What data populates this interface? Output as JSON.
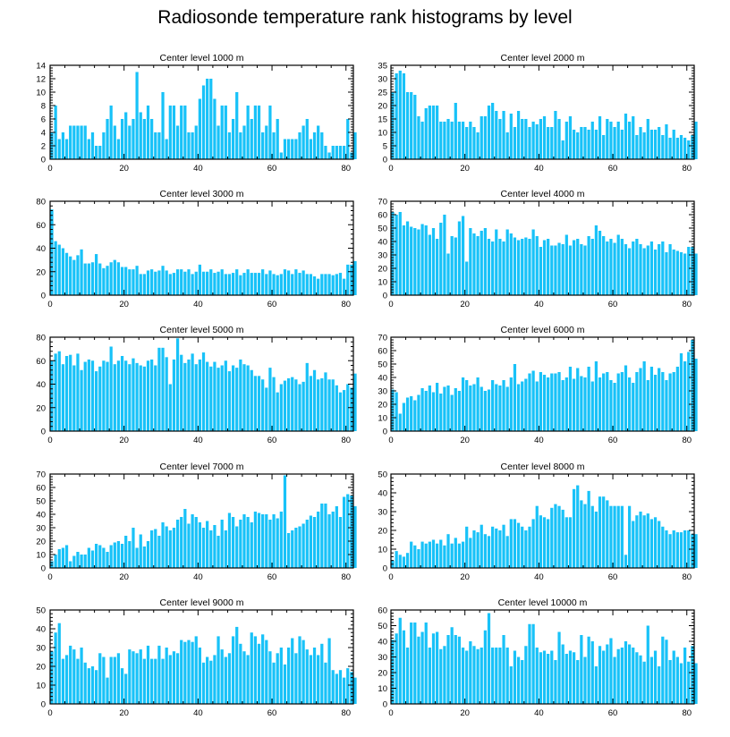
{
  "title": "Radiosonde temperature rank histograms by level",
  "bar_color": "#18C2F8",
  "chart_data": [
    {
      "type": "bar",
      "title": "Center level 1000 m",
      "xlabel": "",
      "ylabel": "",
      "xlim": [
        0,
        82
      ],
      "ylim": [
        0,
        14
      ],
      "xticks": [
        0,
        20,
        40,
        60,
        80
      ],
      "yticks": [
        0,
        2,
        4,
        6,
        8,
        10,
        12,
        14
      ],
      "yaxis_side": "left",
      "x_start": 0,
      "values": [
        4,
        8,
        3,
        4,
        3,
        5,
        5,
        5,
        5,
        5,
        3,
        4,
        2,
        2,
        4,
        6,
        8,
        5,
        3,
        6,
        7,
        5,
        6,
        13,
        7,
        6,
        8,
        6,
        4,
        4,
        10,
        3,
        8,
        8,
        5,
        8,
        8,
        4,
        4,
        5,
        9,
        11,
        12,
        12,
        9,
        5,
        8,
        8,
        4,
        6,
        10,
        4,
        5,
        8,
        6,
        8,
        8,
        4,
        5,
        8,
        4,
        6,
        1,
        3,
        3,
        3,
        3,
        4,
        5,
        6,
        3,
        4,
        5,
        4,
        2,
        1,
        2,
        2,
        2,
        2,
        6,
        1,
        4
      ]
    },
    {
      "type": "bar",
      "title": "Center level 2000 m",
      "xlabel": "",
      "ylabel": "",
      "xlim": [
        0,
        82
      ],
      "ylim": [
        0,
        35
      ],
      "xticks": [
        0,
        20,
        40,
        60,
        80
      ],
      "yticks": [
        0,
        5,
        10,
        15,
        20,
        25,
        30,
        35
      ],
      "yaxis_side": "right",
      "x_start": 0,
      "values": [
        25,
        32,
        33,
        32,
        25,
        25,
        24,
        16,
        14,
        19,
        20,
        20,
        20,
        14,
        14,
        15,
        14,
        21,
        14,
        14,
        12,
        14,
        12,
        10,
        16,
        16,
        20,
        21,
        18,
        15,
        18,
        10,
        17,
        12,
        18,
        15,
        15,
        12,
        14,
        13,
        15,
        16,
        12,
        12,
        18,
        15,
        7,
        14,
        16,
        11,
        10,
        12,
        12,
        11,
        14,
        11,
        16,
        9,
        15,
        14,
        12,
        14,
        11,
        17,
        14,
        16,
        9,
        12,
        10,
        15,
        11,
        11,
        12,
        9,
        13,
        8,
        11,
        8,
        9,
        8,
        7,
        9,
        14
      ]
    },
    {
      "type": "bar",
      "title": "Center level 3000 m",
      "xlabel": "",
      "ylabel": "",
      "xlim": [
        0,
        82
      ],
      "ylim": [
        0,
        80
      ],
      "xticks": [
        0,
        20,
        40,
        60,
        80
      ],
      "yticks": [
        0,
        20,
        40,
        60,
        80
      ],
      "yaxis_side": "left",
      "x_start": 0,
      "values": [
        73,
        46,
        43,
        40,
        36,
        33,
        30,
        34,
        39,
        27,
        27,
        28,
        35,
        27,
        23,
        25,
        28,
        30,
        28,
        24,
        24,
        22,
        22,
        25,
        18,
        18,
        21,
        22,
        20,
        21,
        25,
        21,
        18,
        19,
        22,
        22,
        20,
        22,
        18,
        20,
        26,
        20,
        20,
        22,
        19,
        20,
        22,
        18,
        18,
        19,
        22,
        17,
        19,
        22,
        19,
        19,
        19,
        22,
        18,
        21,
        18,
        17,
        18,
        22,
        21,
        18,
        22,
        19,
        21,
        18,
        18,
        16,
        14,
        18,
        18,
        18,
        17,
        18,
        19,
        14,
        26,
        26,
        29
      ]
    },
    {
      "type": "bar",
      "title": "Center level 4000 m",
      "xlabel": "",
      "ylabel": "",
      "xlim": [
        0,
        82
      ],
      "ylim": [
        0,
        70
      ],
      "xticks": [
        0,
        20,
        40,
        60,
        80
      ],
      "yticks": [
        0,
        10,
        20,
        30,
        40,
        50,
        60,
        70
      ],
      "yaxis_side": "right",
      "x_start": 0,
      "values": [
        62,
        60,
        62,
        52,
        55,
        51,
        50,
        49,
        53,
        52,
        45,
        50,
        42,
        54,
        60,
        31,
        44,
        43,
        55,
        59,
        25,
        50,
        46,
        44,
        48,
        50,
        42,
        40,
        49,
        42,
        40,
        49,
        46,
        43,
        41,
        42,
        43,
        42,
        49,
        44,
        36,
        41,
        42,
        37,
        37,
        39,
        38,
        45,
        37,
        41,
        42,
        38,
        37,
        44,
        42,
        52,
        48,
        44,
        40,
        42,
        39,
        45,
        42,
        38,
        35,
        40,
        42,
        38,
        35,
        37,
        40,
        34,
        38,
        40,
        32,
        38,
        34,
        33,
        32,
        31,
        36,
        36,
        31
      ]
    },
    {
      "type": "bar",
      "title": "Center level 5000 m",
      "xlabel": "",
      "ylabel": "",
      "xlim": [
        0,
        82
      ],
      "ylim": [
        0,
        80
      ],
      "xticks": [
        0,
        20,
        40,
        60,
        80
      ],
      "yticks": [
        0,
        20,
        40,
        60,
        80
      ],
      "yaxis_side": "left",
      "x_start": 0,
      "values": [
        60,
        66,
        68,
        57,
        64,
        65,
        56,
        66,
        52,
        59,
        61,
        60,
        51,
        55,
        60,
        59,
        72,
        57,
        60,
        64,
        60,
        57,
        62,
        58,
        56,
        55,
        60,
        61,
        56,
        71,
        71,
        63,
        40,
        61,
        79,
        65,
        58,
        61,
        66,
        57,
        61,
        67,
        59,
        55,
        59,
        54,
        56,
        60,
        51,
        56,
        54,
        61,
        57,
        56,
        52,
        47,
        47,
        44,
        37,
        54,
        46,
        33,
        40,
        43,
        45,
        46,
        44,
        40,
        42,
        58,
        47,
        52,
        44,
        45,
        50,
        44,
        44,
        39,
        33,
        35,
        40,
        37,
        49
      ]
    },
    {
      "type": "bar",
      "title": "Center level 6000 m",
      "xlabel": "",
      "ylabel": "",
      "xlim": [
        0,
        82
      ],
      "ylim": [
        0,
        70
      ],
      "xticks": [
        0,
        20,
        40,
        60,
        80
      ],
      "yticks": [
        0,
        10,
        20,
        30,
        40,
        50,
        60,
        70
      ],
      "yaxis_side": "right",
      "x_start": 0,
      "values": [
        31,
        29,
        13,
        21,
        25,
        26,
        23,
        27,
        32,
        30,
        34,
        29,
        36,
        28,
        33,
        34,
        27,
        32,
        30,
        40,
        38,
        34,
        35,
        40,
        33,
        30,
        31,
        38,
        35,
        34,
        38,
        33,
        40,
        50,
        35,
        37,
        39,
        43,
        45,
        37,
        44,
        42,
        40,
        43,
        43,
        44,
        38,
        40,
        48,
        39,
        47,
        41,
        40,
        48,
        37,
        52,
        40,
        43,
        44,
        38,
        36,
        43,
        44,
        49,
        40,
        36,
        44,
        47,
        52,
        38,
        48,
        42,
        47,
        44,
        38,
        43,
        44,
        48,
        58,
        52,
        59,
        68,
        54
      ]
    },
    {
      "type": "bar",
      "title": "Center level 7000 m",
      "xlabel": "",
      "ylabel": "",
      "xlim": [
        0,
        82
      ],
      "ylim": [
        0,
        70
      ],
      "xticks": [
        0,
        20,
        40,
        60,
        80
      ],
      "yticks": [
        0,
        10,
        20,
        30,
        40,
        50,
        60,
        70
      ],
      "yaxis_side": "left",
      "x_start": 0,
      "values": [
        5,
        10,
        14,
        15,
        17,
        5,
        9,
        12,
        10,
        10,
        15,
        13,
        18,
        17,
        15,
        12,
        17,
        19,
        20,
        18,
        24,
        20,
        30,
        15,
        25,
        16,
        20,
        28,
        29,
        24,
        34,
        31,
        28,
        30,
        36,
        38,
        44,
        33,
        40,
        38,
        34,
        30,
        35,
        28,
        32,
        24,
        36,
        28,
        41,
        38,
        31,
        36,
        40,
        38,
        34,
        42,
        41,
        40,
        40,
        36,
        40,
        37,
        42,
        69,
        26,
        28,
        30,
        31,
        33,
        36,
        39,
        38,
        42,
        48,
        48,
        40,
        42,
        46,
        38,
        53,
        55,
        54,
        46
      ]
    },
    {
      "type": "bar",
      "title": "Center level 8000 m",
      "xlabel": "",
      "ylabel": "",
      "xlim": [
        0,
        82
      ],
      "ylim": [
        0,
        50
      ],
      "xticks": [
        0,
        20,
        40,
        60,
        80
      ],
      "yticks": [
        0,
        10,
        20,
        30,
        40,
        50
      ],
      "yaxis_side": "right",
      "x_start": 0,
      "values": [
        4,
        9,
        7,
        6,
        8,
        14,
        12,
        10,
        14,
        13,
        14,
        15,
        13,
        15,
        12,
        18,
        13,
        16,
        13,
        14,
        22,
        16,
        20,
        19,
        23,
        18,
        17,
        22,
        21,
        20,
        23,
        17,
        26,
        26,
        24,
        22,
        20,
        22,
        26,
        33,
        28,
        27,
        26,
        32,
        34,
        33,
        31,
        27,
        27,
        42,
        44,
        36,
        34,
        41,
        33,
        30,
        38,
        38,
        36,
        33,
        33,
        33,
        33,
        7,
        33,
        25,
        28,
        30,
        28,
        29,
        26,
        27,
        25,
        22,
        20,
        18,
        20,
        19,
        19,
        20,
        20,
        18,
        18
      ]
    },
    {
      "type": "bar",
      "title": "Center level 9000 m",
      "xlabel": "",
      "ylabel": "",
      "xlim": [
        0,
        82
      ],
      "ylim": [
        0,
        50
      ],
      "xticks": [
        0,
        20,
        40,
        60,
        80
      ],
      "yticks": [
        0,
        10,
        20,
        30,
        40,
        50
      ],
      "yaxis_side": "left",
      "x_start": 0,
      "values": [
        28,
        38,
        43,
        24,
        26,
        31,
        29,
        24,
        30,
        22,
        19,
        20,
        18,
        27,
        25,
        14,
        25,
        25,
        27,
        19,
        16,
        29,
        28,
        27,
        29,
        24,
        31,
        24,
        24,
        31,
        24,
        30,
        26,
        28,
        27,
        34,
        33,
        34,
        33,
        36,
        30,
        22,
        25,
        23,
        26,
        36,
        29,
        25,
        27,
        36,
        41,
        32,
        28,
        26,
        38,
        36,
        32,
        37,
        34,
        28,
        22,
        27,
        30,
        21,
        30,
        35,
        27,
        36,
        34,
        29,
        26,
        30,
        26,
        32,
        22,
        35,
        18,
        16,
        18,
        14,
        19,
        17,
        14
      ]
    },
    {
      "type": "bar",
      "title": "Center level 10000 m",
      "xlabel": "",
      "ylabel": "",
      "xlim": [
        0,
        82
      ],
      "ylim": [
        0,
        60
      ],
      "xticks": [
        0,
        20,
        40,
        60,
        80
      ],
      "yticks": [
        0,
        10,
        20,
        30,
        40,
        50,
        60
      ],
      "yaxis_side": "right",
      "x_start": 0,
      "values": [
        41,
        45,
        55,
        47,
        36,
        52,
        52,
        43,
        46,
        52,
        36,
        45,
        46,
        35,
        37,
        44,
        49,
        44,
        43,
        36,
        34,
        40,
        37,
        35,
        36,
        47,
        58,
        36,
        36,
        36,
        44,
        36,
        24,
        34,
        30,
        28,
        37,
        51,
        51,
        36,
        33,
        34,
        32,
        34,
        28,
        46,
        38,
        32,
        34,
        33,
        28,
        44,
        30,
        43,
        40,
        24,
        37,
        34,
        38,
        42,
        30,
        35,
        36,
        40,
        38,
        36,
        33,
        31,
        27,
        50,
        30,
        34,
        24,
        43,
        41,
        28,
        34,
        30,
        26,
        36,
        27,
        37,
        26
      ]
    }
  ]
}
